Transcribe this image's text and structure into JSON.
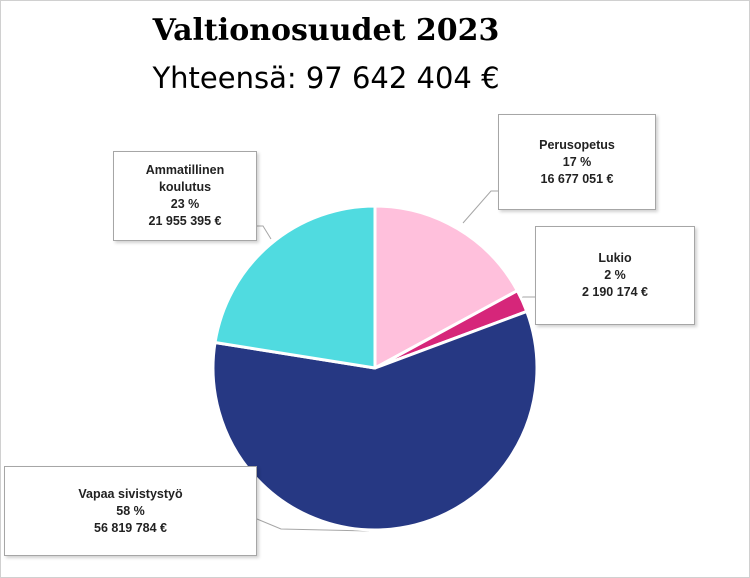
{
  "chart_data": {
    "type": "pie",
    "title": "Valtionosuudet 2023",
    "subtitle": "Yhteensä: 97 642 404 €",
    "slices": [
      {
        "name": "Perusopetus",
        "name_lines": [
          "Perusopetus"
        ],
        "percent_label": "17 %",
        "amount_label": "16 677 051 €",
        "value": 16677051,
        "color": "#ffc0dc"
      },
      {
        "name": "Lukio",
        "name_lines": [
          "Lukio"
        ],
        "percent_label": "2 %",
        "amount_label": "2 190 174 €",
        "value": 2190174,
        "color": "#d6267a"
      },
      {
        "name": "Vapaa sivistystyö",
        "name_lines": [
          "Vapaa sivistystyö"
        ],
        "percent_label": "58 %",
        "amount_label": "56 819 784 €",
        "value": 56819784,
        "color": "#263883"
      },
      {
        "name": "Ammatillinen koulutus",
        "name_lines": [
          "Ammatillinen",
          "koulutus"
        ],
        "percent_label": "23 %",
        "amount_label": "21 955 395 €",
        "value": 21955395,
        "color": "#50dbe0"
      }
    ]
  }
}
